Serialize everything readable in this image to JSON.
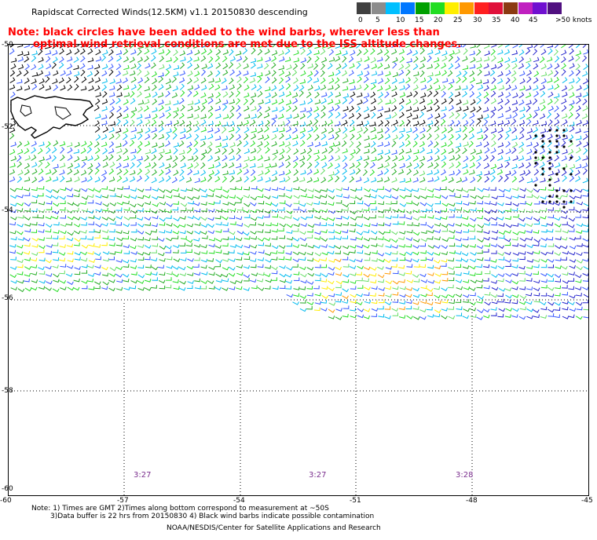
{
  "header": {
    "title": "Rapidscat Corrected Winds(12.5KM) v1.1 20150830 descending",
    "note_line1": "Note: black circles have been added to the wind barbs, wherever less than",
    "note_line2": "optimal wind retrieval conditions are met due to the ISS altitude changes."
  },
  "colorbar": {
    "labels": [
      "0",
      "5",
      "10",
      "15",
      "20",
      "25",
      "30",
      "35",
      "40",
      "45",
      ">50 knots"
    ],
    "colors": [
      "#404040",
      "#8c8c8c",
      "#00bfff",
      "#0077ff",
      "#00a000",
      "#22dd22",
      "#ffee00",
      "#ff9900",
      "#ff2020",
      "#e0103a",
      "#8b3a12",
      "#c020c0",
      "#7010d0",
      "#501080"
    ]
  },
  "map": {
    "lat_labels": [
      "-50",
      "-52",
      "-54",
      "-56",
      "-58",
      "-60"
    ],
    "lon_labels": [
      "-60",
      "-57",
      "-54",
      "-51",
      "-48",
      "-45"
    ],
    "pass_times": [
      "3:27",
      "3:27",
      "3:28"
    ]
  },
  "footer": {
    "line1": "Note: 1) Times are GMT 2)Times along bottom correspond to measurement at ~50S",
    "line2": "3)Data buffer is 22 hrs from 20150830 4) Black wind barbs indicate possible contamination",
    "line3": "NOAA/NESDIS/Center for Satellite Applications and Research"
  }
}
